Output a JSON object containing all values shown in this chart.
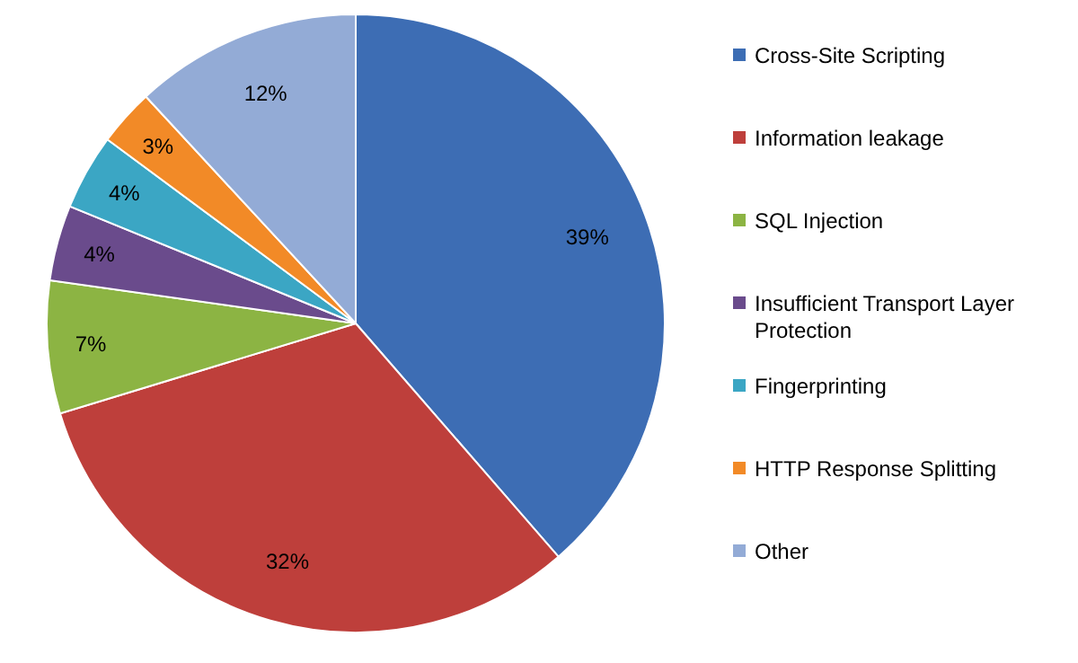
{
  "chart_data": {
    "type": "pie",
    "categories": [
      "Cross-Site Scripting",
      "Information leakage",
      "SQL Injection",
      "Insufficient Transport Layer Protection",
      "Fingerprinting",
      "HTTP Response Splitting",
      "Other"
    ],
    "values": [
      39,
      32,
      7,
      4,
      4,
      3,
      12
    ],
    "colors": [
      "#3d6db4",
      "#be3f3b",
      "#8cb443",
      "#6a4b8c",
      "#3ba6c4",
      "#f28a27",
      "#93abd6"
    ],
    "value_labels": [
      "39%",
      "32%",
      "7%",
      "4%",
      "4%",
      "3%",
      "12%"
    ],
    "legend": "right"
  }
}
